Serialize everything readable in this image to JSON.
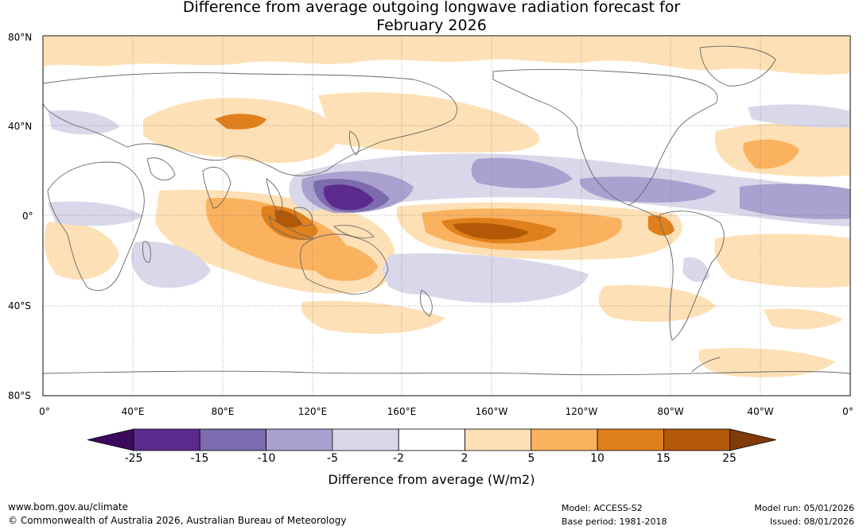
{
  "title": {
    "line1": "Difference from average outgoing longwave radiation forecast for",
    "line2": "February 2026"
  },
  "map": {
    "lat_labels": [
      "80°N",
      "40°N",
      "0°",
      "40°S",
      "80°S"
    ],
    "lon_labels": [
      "0°",
      "40°E",
      "80°E",
      "120°E",
      "160°E",
      "160°W",
      "120°W",
      "80°W",
      "40°W",
      "0°"
    ]
  },
  "colorbar": {
    "title": "Difference from average (W/m2)",
    "ticks": [
      "-25",
      "-15",
      "-10",
      "-5",
      "-2",
      "2",
      "5",
      "10",
      "15",
      "25"
    ],
    "colors": [
      "#3b0a5c",
      "#5b2a8e",
      "#7c6baf",
      "#a9a1cf",
      "#d8d8ea",
      "#ffffff",
      "#fde0b5",
      "#fbb25f",
      "#e0801c",
      "#b35806",
      "#7f3b08"
    ]
  },
  "footer": {
    "url": "www.bom.gov.au/climate",
    "copyright": "© Commonwealth of Australia 2026, Australian Bureau of Meteorology",
    "model": "Model: ACCESS-S2",
    "base_period": "Base period: 1981-2018",
    "model_run": "Model run: 05/01/2026",
    "issued": "Issued: 08/01/2026"
  }
}
